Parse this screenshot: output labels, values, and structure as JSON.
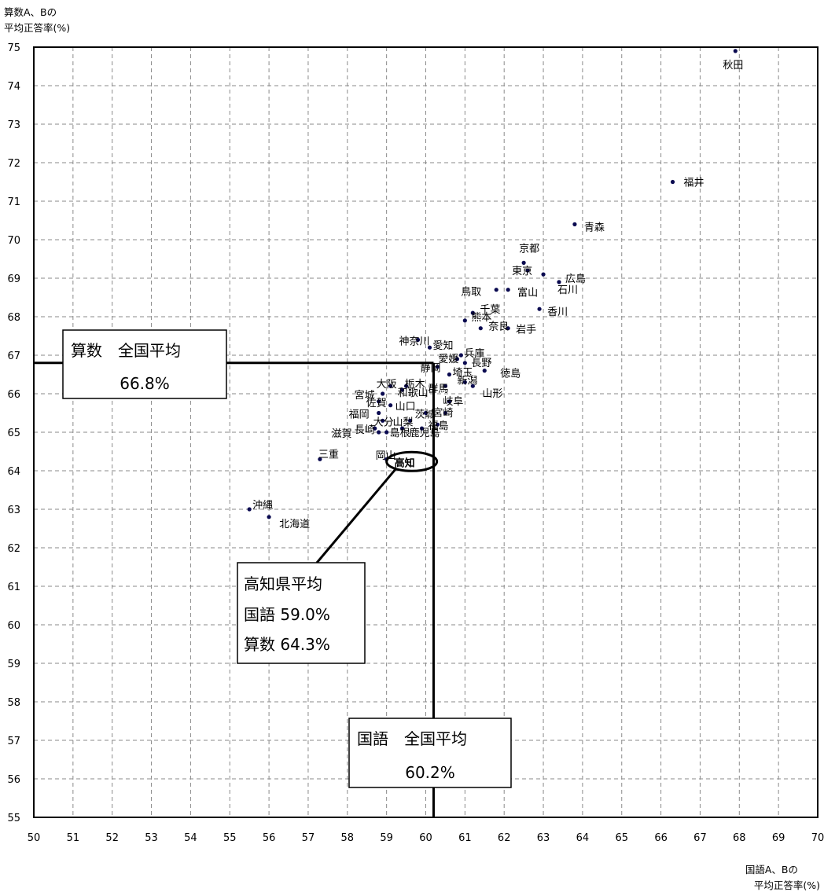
{
  "chart_data": {
    "type": "scatter",
    "title": "",
    "ylabel_lines": [
      "算数A、Bの",
      "平均正答率(%)"
    ],
    "xlabel_lines": [
      "国語A、Bの",
      "平均正答率(%)"
    ],
    "xlim": [
      50,
      70
    ],
    "ylim": [
      55,
      75
    ],
    "x_ticks": [
      "50",
      "51",
      "52",
      "53",
      "54",
      "55",
      "56",
      "57",
      "58",
      "59",
      "60",
      "61",
      "62",
      "63",
      "64",
      "65",
      "66",
      "67",
      "68",
      "69",
      "70"
    ],
    "y_ticks": [
      "55",
      "56",
      "57",
      "58",
      "59",
      "60",
      "61",
      "62",
      "63",
      "64",
      "65",
      "66",
      "67",
      "68",
      "69",
      "70",
      "71",
      "72",
      "73",
      "74",
      "75"
    ],
    "grid": "dashed",
    "marker_color": "#0a0a50",
    "points": [
      {
        "label": "秋田",
        "x": 67.9,
        "y": 74.9
      },
      {
        "label": "福井",
        "x": 66.3,
        "y": 71.5
      },
      {
        "label": "青森",
        "x": 63.8,
        "y": 70.4
      },
      {
        "label": "京都",
        "x": 62.5,
        "y": 69.4
      },
      {
        "label": "東京",
        "x": 62.6,
        "y": 69.2
      },
      {
        "label": "広島",
        "x": 63.4,
        "y": 68.9
      },
      {
        "label": "石川",
        "x": 63.0,
        "y": 69.1
      },
      {
        "label": "鳥取",
        "x": 61.8,
        "y": 68.7
      },
      {
        "label": "富山",
        "x": 62.1,
        "y": 68.7
      },
      {
        "label": "香川",
        "x": 62.9,
        "y": 68.2
      },
      {
        "label": "千葉",
        "x": 61.2,
        "y": 68.1
      },
      {
        "label": "岩手",
        "x": 62.1,
        "y": 67.7
      },
      {
        "label": "熊本",
        "x": 61.0,
        "y": 67.9
      },
      {
        "label": "奈良",
        "x": 61.4,
        "y": 67.7
      },
      {
        "label": "神奈川",
        "x": 59.8,
        "y": 67.4
      },
      {
        "label": "愛知",
        "x": 60.1,
        "y": 67.2
      },
      {
        "label": "兵庫",
        "x": 60.9,
        "y": 67.0
      },
      {
        "label": "愛媛",
        "x": 60.8,
        "y": 66.9
      },
      {
        "label": "長野",
        "x": 61.0,
        "y": 66.8
      },
      {
        "label": "静岡",
        "x": 60.3,
        "y": 66.7
      },
      {
        "label": "埼玉",
        "x": 60.6,
        "y": 66.5
      },
      {
        "label": "徳島",
        "x": 61.5,
        "y": 66.6
      },
      {
        "label": "大阪",
        "x": 59.1,
        "y": 66.2
      },
      {
        "label": "栃木",
        "x": 59.5,
        "y": 66.2
      },
      {
        "label": "群馬",
        "x": 60.5,
        "y": 66.2
      },
      {
        "label": "新潟",
        "x": 61.0,
        "y": 66.3
      },
      {
        "label": "山形",
        "x": 61.2,
        "y": 66.2
      },
      {
        "label": "和歌山",
        "x": 59.4,
        "y": 66.1
      },
      {
        "label": "宮城",
        "x": 58.9,
        "y": 66.0
      },
      {
        "label": "佐賀",
        "x": 58.8,
        "y": 65.8
      },
      {
        "label": "山口",
        "x": 59.1,
        "y": 65.7
      },
      {
        "label": "岐阜",
        "x": 60.6,
        "y": 65.8
      },
      {
        "label": "茨城",
        "x": 60.0,
        "y": 65.5
      },
      {
        "label": "宮崎",
        "x": 60.5,
        "y": 65.5
      },
      {
        "label": "福岡",
        "x": 58.8,
        "y": 65.5
      },
      {
        "label": "大分",
        "x": 58.9,
        "y": 65.3
      },
      {
        "label": "山梨",
        "x": 59.6,
        "y": 65.3
      },
      {
        "label": "長崎",
        "x": 58.7,
        "y": 65.1
      },
      {
        "label": "島根",
        "x": 59.4,
        "y": 65.1
      },
      {
        "label": "鹿児島",
        "x": 59.9,
        "y": 65.1
      },
      {
        "label": "福島",
        "x": 60.3,
        "y": 65.2
      },
      {
        "label": "滋賀",
        "x": 58.8,
        "y": 65.0
      },
      {
        "label": "岡山",
        "x": 59.0,
        "y": 65.0
      },
      {
        "label": "三重",
        "x": 57.3,
        "y": 64.3
      },
      {
        "label": "高知",
        "x": 59.0,
        "y": 64.3,
        "highlight": true
      },
      {
        "label": "沖縄",
        "x": 55.5,
        "y": 63.0
      },
      {
        "label": "北海道",
        "x": 56.0,
        "y": 62.8
      }
    ],
    "national_avg": {
      "x": 60.2,
      "y": 66.8
    }
  },
  "callouts": {
    "math_avg": {
      "line1": "算数　全国平均",
      "line2": "66.8%"
    },
    "japanese_avg": {
      "line1": "国語　全国平均",
      "line2": "60.2%"
    },
    "kochi_avg": {
      "line1": "高知県平均",
      "line2": "国語 59.0%",
      "line3": "算数 64.3%"
    }
  }
}
